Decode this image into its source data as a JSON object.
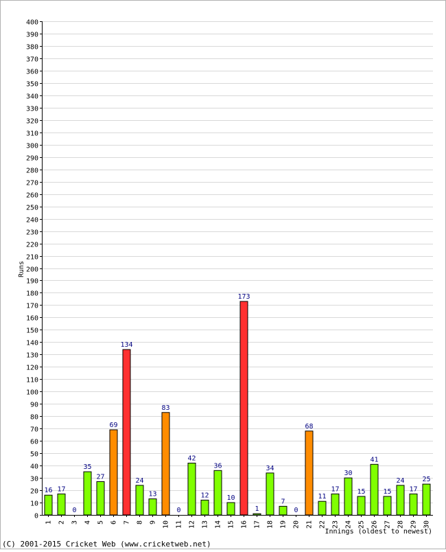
{
  "chart_data": {
    "type": "bar",
    "title": "",
    "xlabel": "Innings (oldest to newest)",
    "ylabel": "Runs",
    "ylim": [
      0,
      400
    ],
    "ystep": 10,
    "grid": true,
    "categories": [
      "1",
      "2",
      "3",
      "4",
      "5",
      "6",
      "7",
      "8",
      "9",
      "10",
      "11",
      "12",
      "13",
      "14",
      "15",
      "16",
      "17",
      "18",
      "19",
      "20",
      "21",
      "22",
      "23",
      "24",
      "25",
      "26",
      "27",
      "28",
      "29",
      "30"
    ],
    "values": [
      16,
      17,
      0,
      35,
      27,
      69,
      134,
      24,
      13,
      83,
      0,
      42,
      12,
      36,
      10,
      173,
      1,
      34,
      7,
      0,
      68,
      11,
      17,
      30,
      15,
      41,
      15,
      24,
      17,
      25
    ],
    "colors": {
      "below_50": "#80ff00",
      "fifty": "#ff8c00",
      "hundred": "#ff3030",
      "label": "#000080",
      "grid": "#d8d8d8"
    }
  },
  "footer": {
    "copyright": "(C) 2001-2015 Cricket Web (www.cricketweb.net)"
  }
}
